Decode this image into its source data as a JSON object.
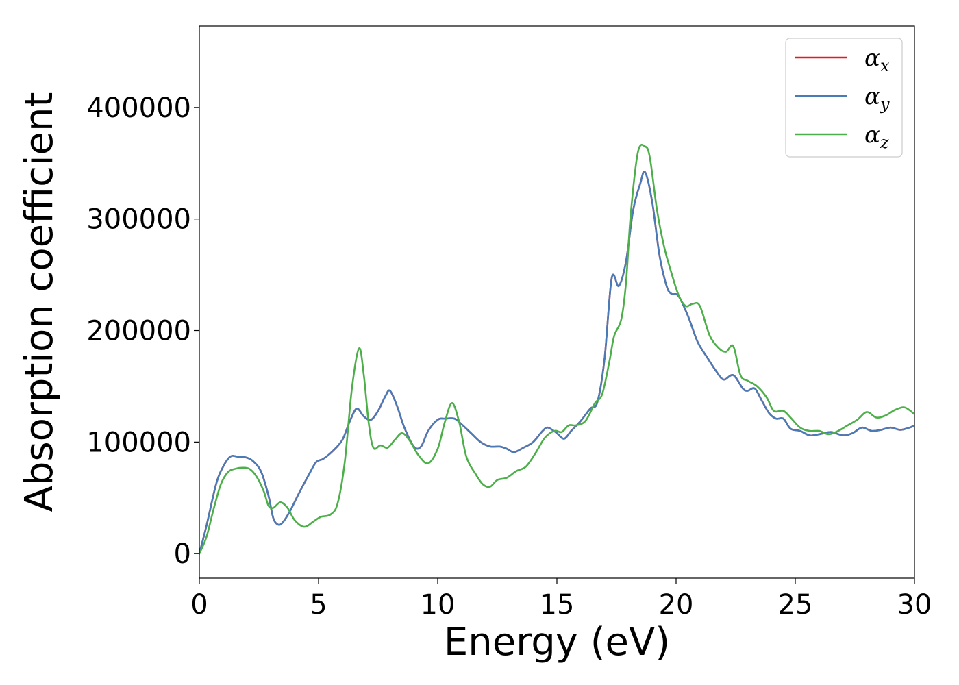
{
  "chart_data": {
    "type": "line",
    "title": "",
    "xlabel": "Energy (eV)",
    "ylabel": "Absorption coefficient",
    "xlim": [
      0,
      30
    ],
    "ylim": [
      -22000,
      473000
    ],
    "xticks": [
      0,
      5,
      10,
      15,
      20,
      25,
      30
    ],
    "yticks": [
      0,
      100000,
      200000,
      300000,
      400000
    ],
    "grid": false,
    "legend_position": "top-right",
    "series": [
      {
        "name": "x",
        "legend_symbol": "α",
        "legend_sub": "x",
        "color": "#e41a1c",
        "points": [
          [
            0,
            0
          ],
          [
            0.3,
            25000
          ],
          [
            0.7,
            62000
          ],
          [
            1.0,
            78000
          ],
          [
            1.3,
            87000
          ],
          [
            1.6,
            87000
          ],
          [
            2.0,
            86000
          ],
          [
            2.3,
            82000
          ],
          [
            2.6,
            73000
          ],
          [
            2.9,
            52000
          ],
          [
            3.1,
            32000
          ],
          [
            3.3,
            26000
          ],
          [
            3.5,
            28000
          ],
          [
            3.8,
            38000
          ],
          [
            4.2,
            55000
          ],
          [
            4.6,
            71000
          ],
          [
            4.9,
            82000
          ],
          [
            5.2,
            85000
          ],
          [
            5.6,
            92000
          ],
          [
            6.0,
            102000
          ],
          [
            6.3,
            118000
          ],
          [
            6.6,
            130000
          ],
          [
            6.9,
            123000
          ],
          [
            7.2,
            120000
          ],
          [
            7.5,
            128000
          ],
          [
            7.8,
            141000
          ],
          [
            8.0,
            146000
          ],
          [
            8.3,
            132000
          ],
          [
            8.6,
            113000
          ],
          [
            9.0,
            96000
          ],
          [
            9.3,
            96000
          ],
          [
            9.6,
            110000
          ],
          [
            10.0,
            120000
          ],
          [
            10.3,
            121000
          ],
          [
            10.7,
            121000
          ],
          [
            11.0,
            116000
          ],
          [
            11.4,
            108000
          ],
          [
            11.8,
            100000
          ],
          [
            12.2,
            96000
          ],
          [
            12.6,
            96000
          ],
          [
            12.9,
            94000
          ],
          [
            13.2,
            91000
          ],
          [
            13.6,
            95000
          ],
          [
            14.0,
            100000
          ],
          [
            14.4,
            110000
          ],
          [
            14.6,
            113000
          ],
          [
            14.8,
            111000
          ],
          [
            15.0,
            108000
          ],
          [
            15.3,
            103000
          ],
          [
            15.6,
            110000
          ],
          [
            16.0,
            119000
          ],
          [
            16.4,
            130000
          ],
          [
            16.7,
            136000
          ],
          [
            17.0,
            175000
          ],
          [
            17.3,
            247000
          ],
          [
            17.6,
            240000
          ],
          [
            17.9,
            262000
          ],
          [
            18.2,
            308000
          ],
          [
            18.5,
            332000
          ],
          [
            18.7,
            342000
          ],
          [
            19.0,
            315000
          ],
          [
            19.3,
            268000
          ],
          [
            19.6,
            240000
          ],
          [
            19.8,
            233000
          ],
          [
            20.1,
            231000
          ],
          [
            20.5,
            213000
          ],
          [
            20.9,
            190000
          ],
          [
            21.3,
            176000
          ],
          [
            21.7,
            163000
          ],
          [
            22.0,
            156000
          ],
          [
            22.4,
            160000
          ],
          [
            22.8,
            148000
          ],
          [
            23.0,
            146000
          ],
          [
            23.3,
            148000
          ],
          [
            23.6,
            137000
          ],
          [
            23.9,
            126000
          ],
          [
            24.2,
            121000
          ],
          [
            24.5,
            121000
          ],
          [
            24.8,
            112000
          ],
          [
            25.2,
            110000
          ],
          [
            25.6,
            106000
          ],
          [
            26.0,
            107000
          ],
          [
            26.5,
            109000
          ],
          [
            27.0,
            106000
          ],
          [
            27.4,
            108000
          ],
          [
            27.8,
            113000
          ],
          [
            28.2,
            110000
          ],
          [
            28.6,
            111000
          ],
          [
            29.0,
            113000
          ],
          [
            29.4,
            111000
          ],
          [
            29.8,
            113000
          ],
          [
            30,
            115000
          ]
        ]
      },
      {
        "name": "y",
        "legend_symbol": "α",
        "legend_sub": "y",
        "color": "#4a7bb7",
        "points": [
          [
            0,
            0
          ],
          [
            0.3,
            25000
          ],
          [
            0.7,
            62000
          ],
          [
            1.0,
            78000
          ],
          [
            1.3,
            87000
          ],
          [
            1.6,
            87000
          ],
          [
            2.0,
            86000
          ],
          [
            2.3,
            82000
          ],
          [
            2.6,
            73000
          ],
          [
            2.9,
            52000
          ],
          [
            3.1,
            32000
          ],
          [
            3.3,
            26000
          ],
          [
            3.5,
            28000
          ],
          [
            3.8,
            38000
          ],
          [
            4.2,
            55000
          ],
          [
            4.6,
            71000
          ],
          [
            4.9,
            82000
          ],
          [
            5.2,
            85000
          ],
          [
            5.6,
            92000
          ],
          [
            6.0,
            102000
          ],
          [
            6.3,
            118000
          ],
          [
            6.6,
            130000
          ],
          [
            6.9,
            123000
          ],
          [
            7.2,
            120000
          ],
          [
            7.5,
            128000
          ],
          [
            7.8,
            141000
          ],
          [
            8.0,
            146000
          ],
          [
            8.3,
            132000
          ],
          [
            8.6,
            113000
          ],
          [
            9.0,
            96000
          ],
          [
            9.3,
            96000
          ],
          [
            9.6,
            110000
          ],
          [
            10.0,
            120000
          ],
          [
            10.3,
            121000
          ],
          [
            10.7,
            121000
          ],
          [
            11.0,
            116000
          ],
          [
            11.4,
            108000
          ],
          [
            11.8,
            100000
          ],
          [
            12.2,
            96000
          ],
          [
            12.6,
            96000
          ],
          [
            12.9,
            94000
          ],
          [
            13.2,
            91000
          ],
          [
            13.6,
            95000
          ],
          [
            14.0,
            100000
          ],
          [
            14.4,
            110000
          ],
          [
            14.6,
            113000
          ],
          [
            14.8,
            111000
          ],
          [
            15.0,
            108000
          ],
          [
            15.3,
            103000
          ],
          [
            15.6,
            110000
          ],
          [
            16.0,
            119000
          ],
          [
            16.4,
            130000
          ],
          [
            16.7,
            136000
          ],
          [
            17.0,
            175000
          ],
          [
            17.3,
            247000
          ],
          [
            17.6,
            240000
          ],
          [
            17.9,
            262000
          ],
          [
            18.2,
            308000
          ],
          [
            18.5,
            332000
          ],
          [
            18.7,
            342000
          ],
          [
            19.0,
            315000
          ],
          [
            19.3,
            268000
          ],
          [
            19.6,
            240000
          ],
          [
            19.8,
            233000
          ],
          [
            20.1,
            231000
          ],
          [
            20.5,
            213000
          ],
          [
            20.9,
            190000
          ],
          [
            21.3,
            176000
          ],
          [
            21.7,
            163000
          ],
          [
            22.0,
            156000
          ],
          [
            22.4,
            160000
          ],
          [
            22.8,
            148000
          ],
          [
            23.0,
            146000
          ],
          [
            23.3,
            148000
          ],
          [
            23.6,
            137000
          ],
          [
            23.9,
            126000
          ],
          [
            24.2,
            121000
          ],
          [
            24.5,
            121000
          ],
          [
            24.8,
            112000
          ],
          [
            25.2,
            110000
          ],
          [
            25.6,
            106000
          ],
          [
            26.0,
            107000
          ],
          [
            26.5,
            109000
          ],
          [
            27.0,
            106000
          ],
          [
            27.4,
            108000
          ],
          [
            27.8,
            113000
          ],
          [
            28.2,
            110000
          ],
          [
            28.6,
            111000
          ],
          [
            29.0,
            113000
          ],
          [
            29.4,
            111000
          ],
          [
            29.8,
            113000
          ],
          [
            30,
            115000
          ]
        ]
      },
      {
        "name": "z",
        "legend_symbol": "α",
        "legend_sub": "z",
        "color": "#4daf4a",
        "points": [
          [
            0,
            0
          ],
          [
            0.3,
            15000
          ],
          [
            0.6,
            40000
          ],
          [
            0.9,
            62000
          ],
          [
            1.2,
            73000
          ],
          [
            1.5,
            76000
          ],
          [
            1.8,
            77000
          ],
          [
            2.1,
            76000
          ],
          [
            2.4,
            69000
          ],
          [
            2.7,
            56000
          ],
          [
            2.9,
            43000
          ],
          [
            3.1,
            41000
          ],
          [
            3.4,
            46000
          ],
          [
            3.7,
            41000
          ],
          [
            4.0,
            30000
          ],
          [
            4.4,
            24000
          ],
          [
            4.8,
            29000
          ],
          [
            5.1,
            33000
          ],
          [
            5.5,
            35000
          ],
          [
            5.8,
            45000
          ],
          [
            6.1,
            82000
          ],
          [
            6.4,
            148000
          ],
          [
            6.7,
            184000
          ],
          [
            6.9,
            160000
          ],
          [
            7.1,
            118000
          ],
          [
            7.3,
            95000
          ],
          [
            7.6,
            97000
          ],
          [
            7.9,
            95000
          ],
          [
            8.2,
            102000
          ],
          [
            8.5,
            108000
          ],
          [
            8.8,
            102000
          ],
          [
            9.2,
            88000
          ],
          [
            9.6,
            81000
          ],
          [
            10.0,
            94000
          ],
          [
            10.3,
            118000
          ],
          [
            10.6,
            135000
          ],
          [
            10.9,
            118000
          ],
          [
            11.2,
            87000
          ],
          [
            11.6,
            71000
          ],
          [
            11.9,
            62000
          ],
          [
            12.2,
            60000
          ],
          [
            12.5,
            66000
          ],
          [
            12.9,
            68000
          ],
          [
            13.3,
            74000
          ],
          [
            13.7,
            78000
          ],
          [
            14.1,
            90000
          ],
          [
            14.5,
            104000
          ],
          [
            14.9,
            110000
          ],
          [
            15.2,
            109000
          ],
          [
            15.5,
            115000
          ],
          [
            15.8,
            115000
          ],
          [
            16.2,
            119000
          ],
          [
            16.6,
            135000
          ],
          [
            16.9,
            143000
          ],
          [
            17.2,
            172000
          ],
          [
            17.4,
            195000
          ],
          [
            17.7,
            210000
          ],
          [
            17.9,
            243000
          ],
          [
            18.1,
            305000
          ],
          [
            18.4,
            360000
          ],
          [
            18.7,
            365000
          ],
          [
            18.9,
            355000
          ],
          [
            19.2,
            308000
          ],
          [
            19.5,
            275000
          ],
          [
            19.8,
            252000
          ],
          [
            20.1,
            232000
          ],
          [
            20.4,
            222000
          ],
          [
            20.7,
            224000
          ],
          [
            21.0,
            222000
          ],
          [
            21.4,
            196000
          ],
          [
            21.8,
            184000
          ],
          [
            22.1,
            181000
          ],
          [
            22.4,
            186000
          ],
          [
            22.7,
            160000
          ],
          [
            23.0,
            155000
          ],
          [
            23.4,
            150000
          ],
          [
            23.8,
            140000
          ],
          [
            24.1,
            128000
          ],
          [
            24.5,
            128000
          ],
          [
            24.8,
            122000
          ],
          [
            25.2,
            113000
          ],
          [
            25.6,
            110000
          ],
          [
            26.0,
            110000
          ],
          [
            26.4,
            107000
          ],
          [
            26.8,
            110000
          ],
          [
            27.2,
            115000
          ],
          [
            27.6,
            120000
          ],
          [
            28.0,
            127000
          ],
          [
            28.4,
            122000
          ],
          [
            28.8,
            124000
          ],
          [
            29.2,
            129000
          ],
          [
            29.6,
            131000
          ],
          [
            30,
            125000
          ]
        ]
      }
    ]
  }
}
